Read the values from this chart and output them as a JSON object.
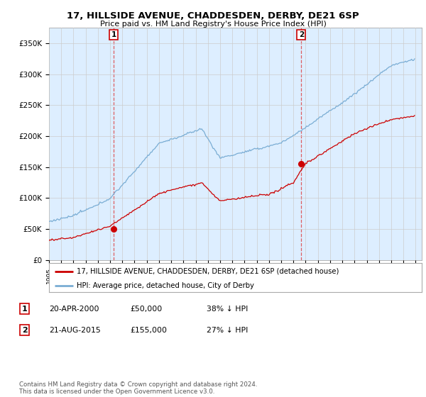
{
  "title": "17, HILLSIDE AVENUE, CHADDESDEN, DERBY, DE21 6SP",
  "subtitle": "Price paid vs. HM Land Registry's House Price Index (HPI)",
  "ylabel_ticks": [
    "£0",
    "£50K",
    "£100K",
    "£150K",
    "£200K",
    "£250K",
    "£300K",
    "£350K"
  ],
  "ytick_values": [
    0,
    50000,
    100000,
    150000,
    200000,
    250000,
    300000,
    350000
  ],
  "ylim": [
    0,
    375000
  ],
  "xlim_start": 1995.0,
  "xlim_end": 2025.5,
  "sale1_x": 2000.3,
  "sale1_y": 50000,
  "sale1_label": "1",
  "sale2_x": 2015.64,
  "sale2_y": 155000,
  "sale2_label": "2",
  "hpi_color": "#7aadd4",
  "hpi_bg_color": "#ddeeff",
  "price_color": "#cc0000",
  "annotation_box_color": "#cc0000",
  "dashed_line_color": "#dd4444",
  "grid_color": "#cccccc",
  "chart_bg": "#ddeeff",
  "legend_label_price": "17, HILLSIDE AVENUE, CHADDESDEN, DERBY, DE21 6SP (detached house)",
  "legend_label_hpi": "HPI: Average price, detached house, City of Derby",
  "table_rows": [
    [
      "1",
      "20-APR-2000",
      "£50,000",
      "38% ↓ HPI"
    ],
    [
      "2",
      "21-AUG-2015",
      "£155,000",
      "27% ↓ HPI"
    ]
  ],
  "footnote": "Contains HM Land Registry data © Crown copyright and database right 2024.\nThis data is licensed under the Open Government Licence v3.0.",
  "background_color": "#ffffff"
}
